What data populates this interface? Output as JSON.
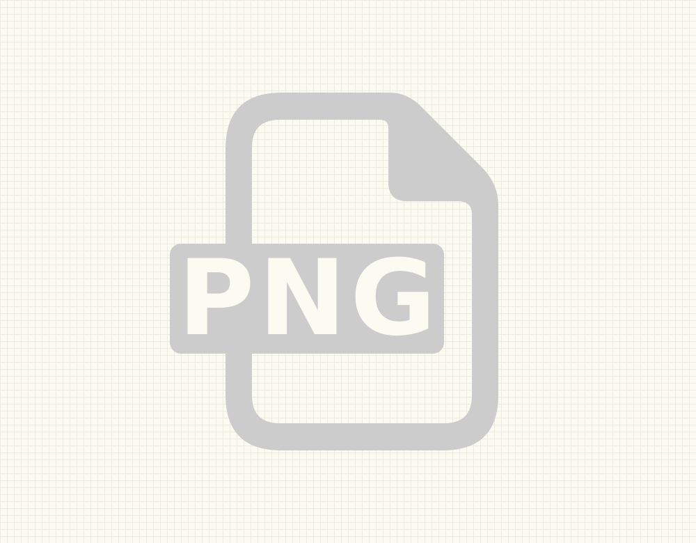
{
  "file_type_icon": {
    "icon": "png-file-icon",
    "label": "PNG",
    "icon_color": "#cccccc",
    "label_color": "#fbfbf1",
    "background_color": "#fbfbf1",
    "grid_color": "#ecede0"
  }
}
